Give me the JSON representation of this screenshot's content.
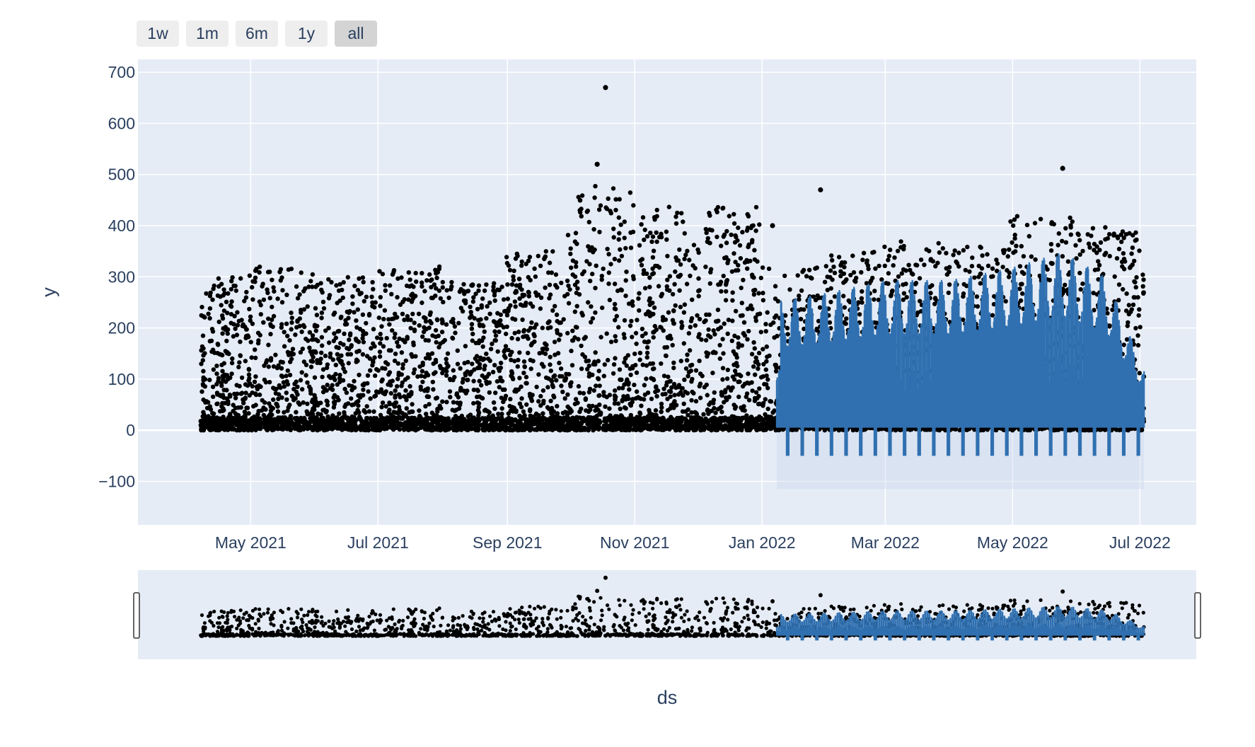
{
  "range_selector": {
    "buttons": [
      {
        "label": "1w",
        "active": false
      },
      {
        "label": "1m",
        "active": false
      },
      {
        "label": "6m",
        "active": false
      },
      {
        "label": "1y",
        "active": false
      },
      {
        "label": "all",
        "active": true
      }
    ]
  },
  "colors": {
    "plot_bg": "#e5ecf6",
    "grid": "#ffffff",
    "points": "#000000",
    "forecast": "#3070b0",
    "band": "#c7d4ea",
    "text": "#2a3f5f"
  },
  "chart_data": {
    "type": "scatter",
    "xlabel": "ds",
    "ylabel": "y",
    "x_range": [
      "2021-03-08",
      "2022-07-28"
    ],
    "ylim": [
      -185,
      725
    ],
    "y_ticks": [
      700,
      600,
      500,
      400,
      300,
      200,
      100,
      0,
      -100
    ],
    "y_tick_labels": [
      "700",
      "600",
      "500",
      "400",
      "300",
      "200",
      "100",
      "0",
      "−100"
    ],
    "x_ticks": [
      "2021-05-01",
      "2021-07-01",
      "2021-09-01",
      "2021-11-01",
      "2022-01-01",
      "2022-03-01",
      "2022-05-01",
      "2022-07-01"
    ],
    "x_tick_labels": [
      "May 2021",
      "Jul 2021",
      "Sep 2021",
      "Nov 2021",
      "Jan 2022",
      "Mar 2022",
      "May 2022",
      "Jul 2022"
    ],
    "grid": true,
    "legend": "none",
    "rangeslider": true,
    "series": [
      {
        "kind": "observed-scatter",
        "x_start": "2021-04-07",
        "x_end": "2022-07-03",
        "y_min": 0,
        "typical_max_by_month": [
          {
            "month": "2021-04",
            "max": 300
          },
          {
            "month": "2021-05",
            "max": 320
          },
          {
            "month": "2021-06",
            "max": 300
          },
          {
            "month": "2021-07",
            "max": 320
          },
          {
            "month": "2021-08",
            "max": 290
          },
          {
            "month": "2021-09",
            "max": 350
          },
          {
            "month": "2021-10",
            "max": 480
          },
          {
            "month": "2021-11",
            "max": 440
          },
          {
            "month": "2021-12",
            "max": 440
          },
          {
            "month": "2022-01",
            "max": 320
          },
          {
            "month": "2022-02",
            "max": 350
          },
          {
            "month": "2022-03",
            "max": 370
          },
          {
            "month": "2022-04",
            "max": 360
          },
          {
            "month": "2022-05",
            "max": 420
          },
          {
            "month": "2022-06",
            "max": 400
          },
          {
            "month": "2022-07",
            "max": 380
          }
        ],
        "outliers": [
          {
            "x": "2021-10-18",
            "y": 670
          },
          {
            "x": "2021-10-14",
            "y": 520
          },
          {
            "x": "2022-01-29",
            "y": 470
          },
          {
            "x": "2022-05-25",
            "y": 512
          },
          {
            "x": "2022-01-06",
            "y": 400
          }
        ]
      },
      {
        "kind": "forecast-yhat",
        "x_start": "2022-01-08",
        "x_end": "2022-07-03",
        "weekly_peaks": [
          {
            "x": "2022-01-10",
            "y": 255
          },
          {
            "x": "2022-02-01",
            "y": 270
          },
          {
            "x": "2022-03-01",
            "y": 295
          },
          {
            "x": "2022-04-01",
            "y": 295
          },
          {
            "x": "2022-05-01",
            "y": 320
          },
          {
            "x": "2022-05-25",
            "y": 350
          },
          {
            "x": "2022-06-15",
            "y": 300
          },
          {
            "x": "2022-06-25",
            "y": 200
          },
          {
            "x": "2022-07-03",
            "y": 120
          }
        ],
        "weekly_troughs_y": -50
      }
    ]
  }
}
